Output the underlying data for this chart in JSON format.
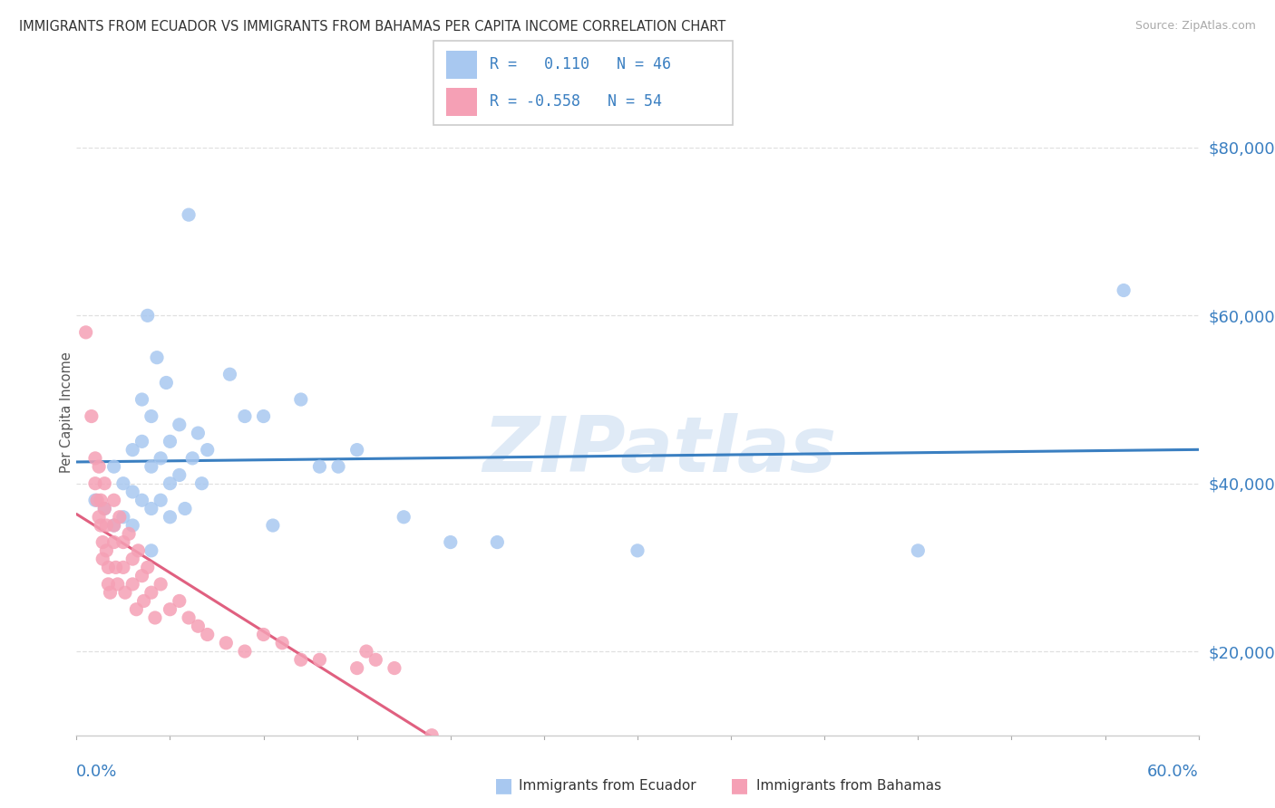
{
  "title": "IMMIGRANTS FROM ECUADOR VS IMMIGRANTS FROM BAHAMAS PER CAPITA INCOME CORRELATION CHART",
  "source": "Source: ZipAtlas.com",
  "ylabel": "Per Capita Income",
  "y_ticks": [
    20000,
    40000,
    60000,
    80000
  ],
  "y_tick_labels": [
    "$20,000",
    "$40,000",
    "$60,000",
    "$80,000"
  ],
  "x_min": 0.0,
  "x_max": 0.6,
  "y_min": 10000,
  "y_max": 87000,
  "ecuador_R": 0.11,
  "ecuador_N": 46,
  "bahamas_R": -0.558,
  "bahamas_N": 54,
  "ecuador_scatter_color": "#a8c8f0",
  "bahamas_scatter_color": "#f5a0b5",
  "ecuador_line_color": "#3a7fc1",
  "bahamas_line_color": "#e06080",
  "text_blue": "#3a7fc1",
  "grid_color": "#e0e0e0",
  "watermark": "ZIPatlas",
  "ecuador_points": [
    [
      0.01,
      38000
    ],
    [
      0.015,
      37000
    ],
    [
      0.02,
      42000
    ],
    [
      0.02,
      35000
    ],
    [
      0.025,
      40000
    ],
    [
      0.025,
      36000
    ],
    [
      0.03,
      44000
    ],
    [
      0.03,
      39000
    ],
    [
      0.03,
      35000
    ],
    [
      0.035,
      50000
    ],
    [
      0.035,
      45000
    ],
    [
      0.035,
      38000
    ],
    [
      0.038,
      60000
    ],
    [
      0.04,
      48000
    ],
    [
      0.04,
      42000
    ],
    [
      0.04,
      37000
    ],
    [
      0.04,
      32000
    ],
    [
      0.043,
      55000
    ],
    [
      0.045,
      43000
    ],
    [
      0.045,
      38000
    ],
    [
      0.048,
      52000
    ],
    [
      0.05,
      45000
    ],
    [
      0.05,
      40000
    ],
    [
      0.05,
      36000
    ],
    [
      0.055,
      47000
    ],
    [
      0.055,
      41000
    ],
    [
      0.058,
      37000
    ],
    [
      0.06,
      72000
    ],
    [
      0.062,
      43000
    ],
    [
      0.065,
      46000
    ],
    [
      0.067,
      40000
    ],
    [
      0.07,
      44000
    ],
    [
      0.082,
      53000
    ],
    [
      0.09,
      48000
    ],
    [
      0.1,
      48000
    ],
    [
      0.105,
      35000
    ],
    [
      0.12,
      50000
    ],
    [
      0.13,
      42000
    ],
    [
      0.14,
      42000
    ],
    [
      0.15,
      44000
    ],
    [
      0.175,
      36000
    ],
    [
      0.2,
      33000
    ],
    [
      0.225,
      33000
    ],
    [
      0.3,
      32000
    ],
    [
      0.45,
      32000
    ],
    [
      0.56,
      63000
    ]
  ],
  "bahamas_points": [
    [
      0.005,
      58000
    ],
    [
      0.008,
      48000
    ],
    [
      0.01,
      43000
    ],
    [
      0.01,
      40000
    ],
    [
      0.011,
      38000
    ],
    [
      0.012,
      36000
    ],
    [
      0.012,
      42000
    ],
    [
      0.013,
      38000
    ],
    [
      0.013,
      35000
    ],
    [
      0.014,
      33000
    ],
    [
      0.014,
      31000
    ],
    [
      0.015,
      40000
    ],
    [
      0.015,
      37000
    ],
    [
      0.016,
      35000
    ],
    [
      0.016,
      32000
    ],
    [
      0.017,
      30000
    ],
    [
      0.017,
      28000
    ],
    [
      0.018,
      27000
    ],
    [
      0.02,
      38000
    ],
    [
      0.02,
      35000
    ],
    [
      0.02,
      33000
    ],
    [
      0.021,
      30000
    ],
    [
      0.022,
      28000
    ],
    [
      0.023,
      36000
    ],
    [
      0.025,
      33000
    ],
    [
      0.025,
      30000
    ],
    [
      0.026,
      27000
    ],
    [
      0.028,
      34000
    ],
    [
      0.03,
      31000
    ],
    [
      0.03,
      28000
    ],
    [
      0.032,
      25000
    ],
    [
      0.033,
      32000
    ],
    [
      0.035,
      29000
    ],
    [
      0.036,
      26000
    ],
    [
      0.038,
      30000
    ],
    [
      0.04,
      27000
    ],
    [
      0.042,
      24000
    ],
    [
      0.045,
      28000
    ],
    [
      0.05,
      25000
    ],
    [
      0.055,
      26000
    ],
    [
      0.06,
      24000
    ],
    [
      0.065,
      23000
    ],
    [
      0.07,
      22000
    ],
    [
      0.08,
      21000
    ],
    [
      0.09,
      20000
    ],
    [
      0.1,
      22000
    ],
    [
      0.11,
      21000
    ],
    [
      0.12,
      19000
    ],
    [
      0.13,
      19000
    ],
    [
      0.15,
      18000
    ],
    [
      0.155,
      20000
    ],
    [
      0.16,
      19000
    ],
    [
      0.17,
      18000
    ],
    [
      0.19,
      10000
    ]
  ]
}
